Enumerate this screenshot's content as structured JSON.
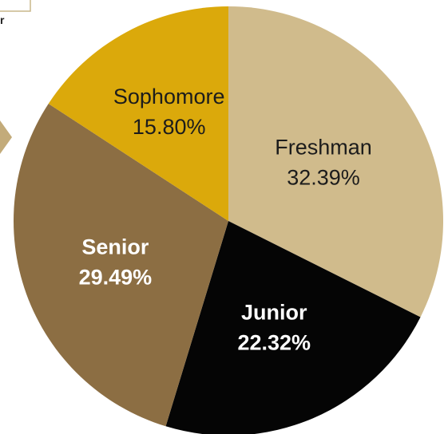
{
  "fragment": {
    "corner_letter": "r"
  },
  "colors": {
    "corner_box_fill": "#ffffff",
    "corner_box_stroke": "#c9b78a",
    "arrow": "#c3ab7a"
  },
  "chart_data": {
    "type": "pie",
    "start_angle_deg": 0,
    "direction": "clockwise",
    "slices": [
      {
        "label": "Freshman",
        "value_label": "32.39%",
        "value": 32.39,
        "color": "#d0bb8c",
        "text_color": "#1c1c1c",
        "bold": false
      },
      {
        "label": "Junior",
        "value_label": "22.32%",
        "value": 22.32,
        "color": "#050505",
        "text_color": "#ffffff",
        "bold": true
      },
      {
        "label": "Senior",
        "value_label": "29.49%",
        "value": 29.49,
        "color": "#8c6e43",
        "text_color": "#ffffff",
        "bold": true
      },
      {
        "label": "Sophomore",
        "value_label": "15.80%",
        "value": 15.8,
        "color": "#dba90b",
        "text_color": "#1c1c1c",
        "bold": false
      }
    ]
  }
}
